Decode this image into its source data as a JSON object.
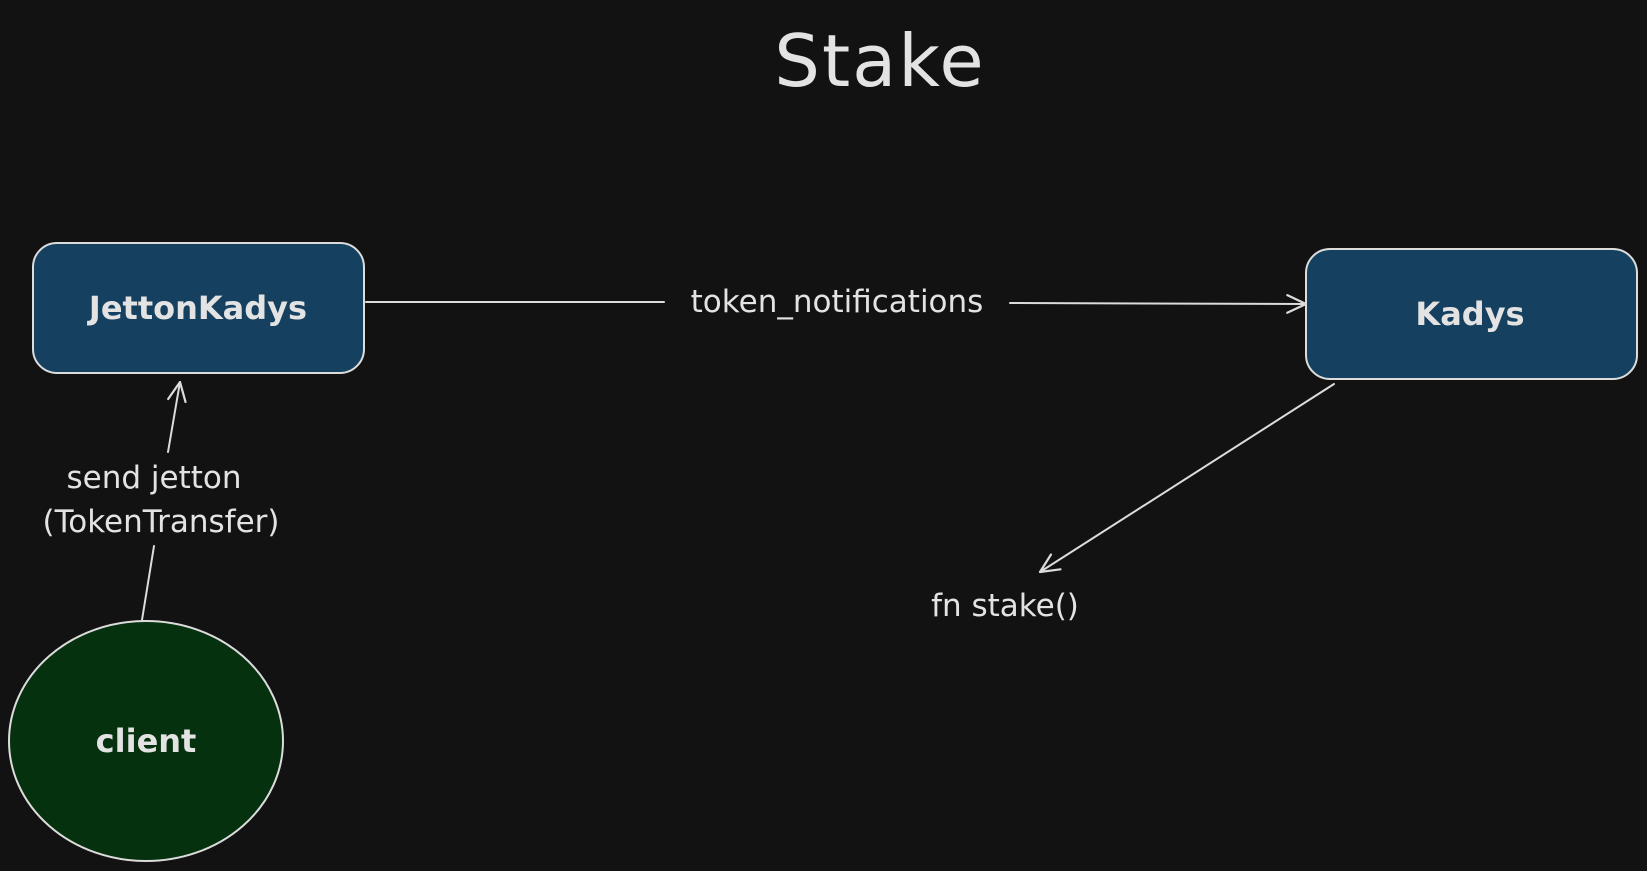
{
  "title": "Stake",
  "nodes": {
    "jetton_kadys": {
      "label": "JettonKadys",
      "fill": "#16405f"
    },
    "kadys": {
      "label": "Kadys",
      "fill": "#16405f"
    },
    "client": {
      "label": "client",
      "fill": "#06310e"
    }
  },
  "edges": {
    "token_notifications": {
      "label": "token_notifications"
    },
    "send_jetton": {
      "label_line1": "send jetton",
      "label_line2": "(TokenTransfer)"
    },
    "stake_call": {
      "label": "fn stake()"
    }
  },
  "colors": {
    "background": "#121212",
    "stroke": "#dcdcdc",
    "text": "#e3e3e3"
  }
}
